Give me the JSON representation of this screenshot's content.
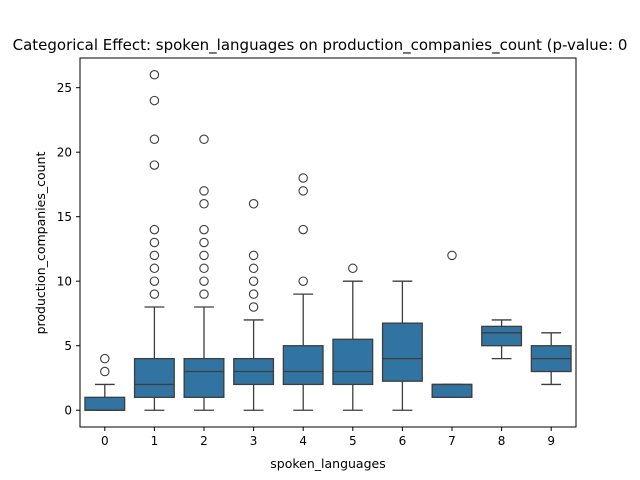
{
  "chart_data": {
    "type": "box",
    "title": "Categorical Effect: spoken_languages on production_companies_count (p-value: 0",
    "xlabel": "spoken_languages",
    "ylabel": "production_companies_count",
    "categories": [
      "0",
      "1",
      "2",
      "3",
      "4",
      "5",
      "6",
      "7",
      "8",
      "9"
    ],
    "ylim": [
      -1.3,
      27.3
    ],
    "yticks": [
      0,
      5,
      10,
      15,
      20,
      25
    ],
    "box_color": "#3274a1",
    "line_color": "#3d3d3d",
    "boxes": [
      {
        "category": "0",
        "whisker_low": 0,
        "q1": 0,
        "median": 0,
        "q3": 1,
        "whisker_high": 2,
        "outliers": [
          3,
          4
        ]
      },
      {
        "category": "1",
        "whisker_low": 0,
        "q1": 1,
        "median": 2,
        "q3": 4,
        "whisker_high": 8,
        "outliers": [
          9,
          10,
          11,
          12,
          13,
          14,
          19,
          21,
          24,
          26
        ]
      },
      {
        "category": "2",
        "whisker_low": 0,
        "q1": 1,
        "median": 3,
        "q3": 4,
        "whisker_high": 8,
        "outliers": [
          9,
          10,
          11,
          12,
          13,
          14,
          16,
          17,
          21
        ]
      },
      {
        "category": "3",
        "whisker_low": 0,
        "q1": 2,
        "median": 3,
        "q3": 4,
        "whisker_high": 7,
        "outliers": [
          8,
          9,
          10,
          11,
          12,
          16
        ]
      },
      {
        "category": "4",
        "whisker_low": 0,
        "q1": 2,
        "median": 3,
        "q3": 5,
        "whisker_high": 9,
        "outliers": [
          10,
          14,
          17,
          18
        ]
      },
      {
        "category": "5",
        "whisker_low": 0,
        "q1": 2,
        "median": 3,
        "q3": 5.5,
        "whisker_high": 10,
        "outliers": [
          11
        ]
      },
      {
        "category": "6",
        "whisker_low": 0,
        "q1": 2.25,
        "median": 4,
        "q3": 6.75,
        "whisker_high": 10,
        "outliers": []
      },
      {
        "category": "7",
        "whisker_low": 1,
        "q1": 1,
        "median": 2,
        "q3": 2,
        "whisker_high": 2,
        "outliers": [
          12
        ]
      },
      {
        "category": "8",
        "whisker_low": 4,
        "q1": 5,
        "median": 6,
        "q3": 6.5,
        "whisker_high": 7,
        "outliers": []
      },
      {
        "category": "9",
        "whisker_low": 2,
        "q1": 3,
        "median": 4,
        "q3": 5,
        "whisker_high": 6,
        "outliers": []
      }
    ]
  }
}
